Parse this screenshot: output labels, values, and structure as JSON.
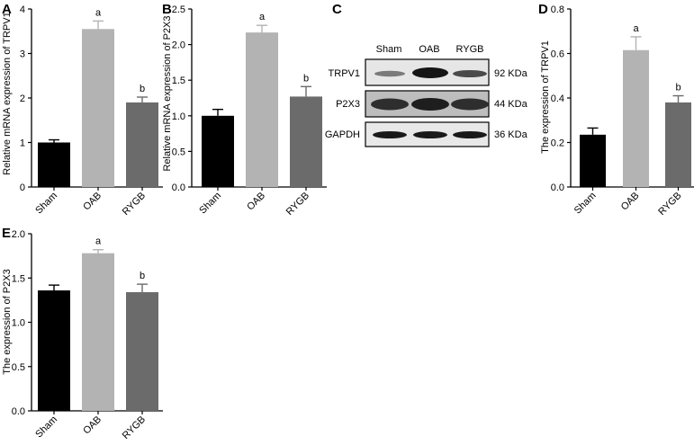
{
  "colors": {
    "sham": "#000000",
    "oab": "#b3b3b3",
    "rygb": "#6b6b6b",
    "axis": "#000000"
  },
  "chart_data": [
    {
      "panel": "A",
      "type": "bar",
      "categories": [
        "Sham",
        "OAB",
        "RYGB"
      ],
      "values": [
        1.0,
        3.55,
        1.9
      ],
      "errors": [
        0.06,
        0.18,
        0.12
      ],
      "significance": [
        "",
        "a",
        "b"
      ],
      "ylabel": "Relative mRNA expression of TRPV1",
      "ylim": [
        0,
        4
      ],
      "yticks": [
        "0",
        "1",
        "2",
        "3",
        "4"
      ]
    },
    {
      "panel": "B",
      "type": "bar",
      "categories": [
        "Sham",
        "OAB",
        "RYGB"
      ],
      "values": [
        1.0,
        2.17,
        1.27
      ],
      "errors": [
        0.09,
        0.1,
        0.14
      ],
      "significance": [
        "",
        "a",
        "b"
      ],
      "ylabel": "Relative mRNA expression of P2X3",
      "ylim": [
        0,
        2.5
      ],
      "yticks": [
        "0.0",
        "0.5",
        "1.0",
        "1.5",
        "2.0",
        "2.5"
      ]
    },
    {
      "panel": "D",
      "type": "bar",
      "categories": [
        "Sham",
        "OAB",
        "RYGB"
      ],
      "values": [
        0.235,
        0.615,
        0.38
      ],
      "errors": [
        0.03,
        0.06,
        0.03
      ],
      "significance": [
        "",
        "a",
        "b"
      ],
      "ylabel": "The expression of TRPV1",
      "ylim": [
        0,
        0.8
      ],
      "yticks": [
        "0.0",
        "0.2",
        "0.4",
        "0.6",
        "0.8"
      ]
    },
    {
      "panel": "E",
      "type": "bar",
      "categories": [
        "Sham",
        "OAB",
        "RYGB"
      ],
      "values": [
        1.36,
        1.78,
        1.34
      ],
      "errors": [
        0.06,
        0.04,
        0.09
      ],
      "significance": [
        "",
        "a",
        "b"
      ],
      "ylabel": "The expression of P2X3",
      "ylim": [
        0,
        2.0
      ],
      "yticks": [
        "0.0",
        "0.5",
        "1.0",
        "1.5",
        "2.0"
      ]
    }
  ],
  "blot": {
    "panel": "C",
    "lanes": [
      "Sham",
      "OAB",
      "RYGB"
    ],
    "rows": [
      {
        "label": "TRPV1",
        "size": "92 KDa"
      },
      {
        "label": "P2X3",
        "size": "44 KDa"
      },
      {
        "label": "GAPDH",
        "size": "36 KDa"
      }
    ]
  }
}
